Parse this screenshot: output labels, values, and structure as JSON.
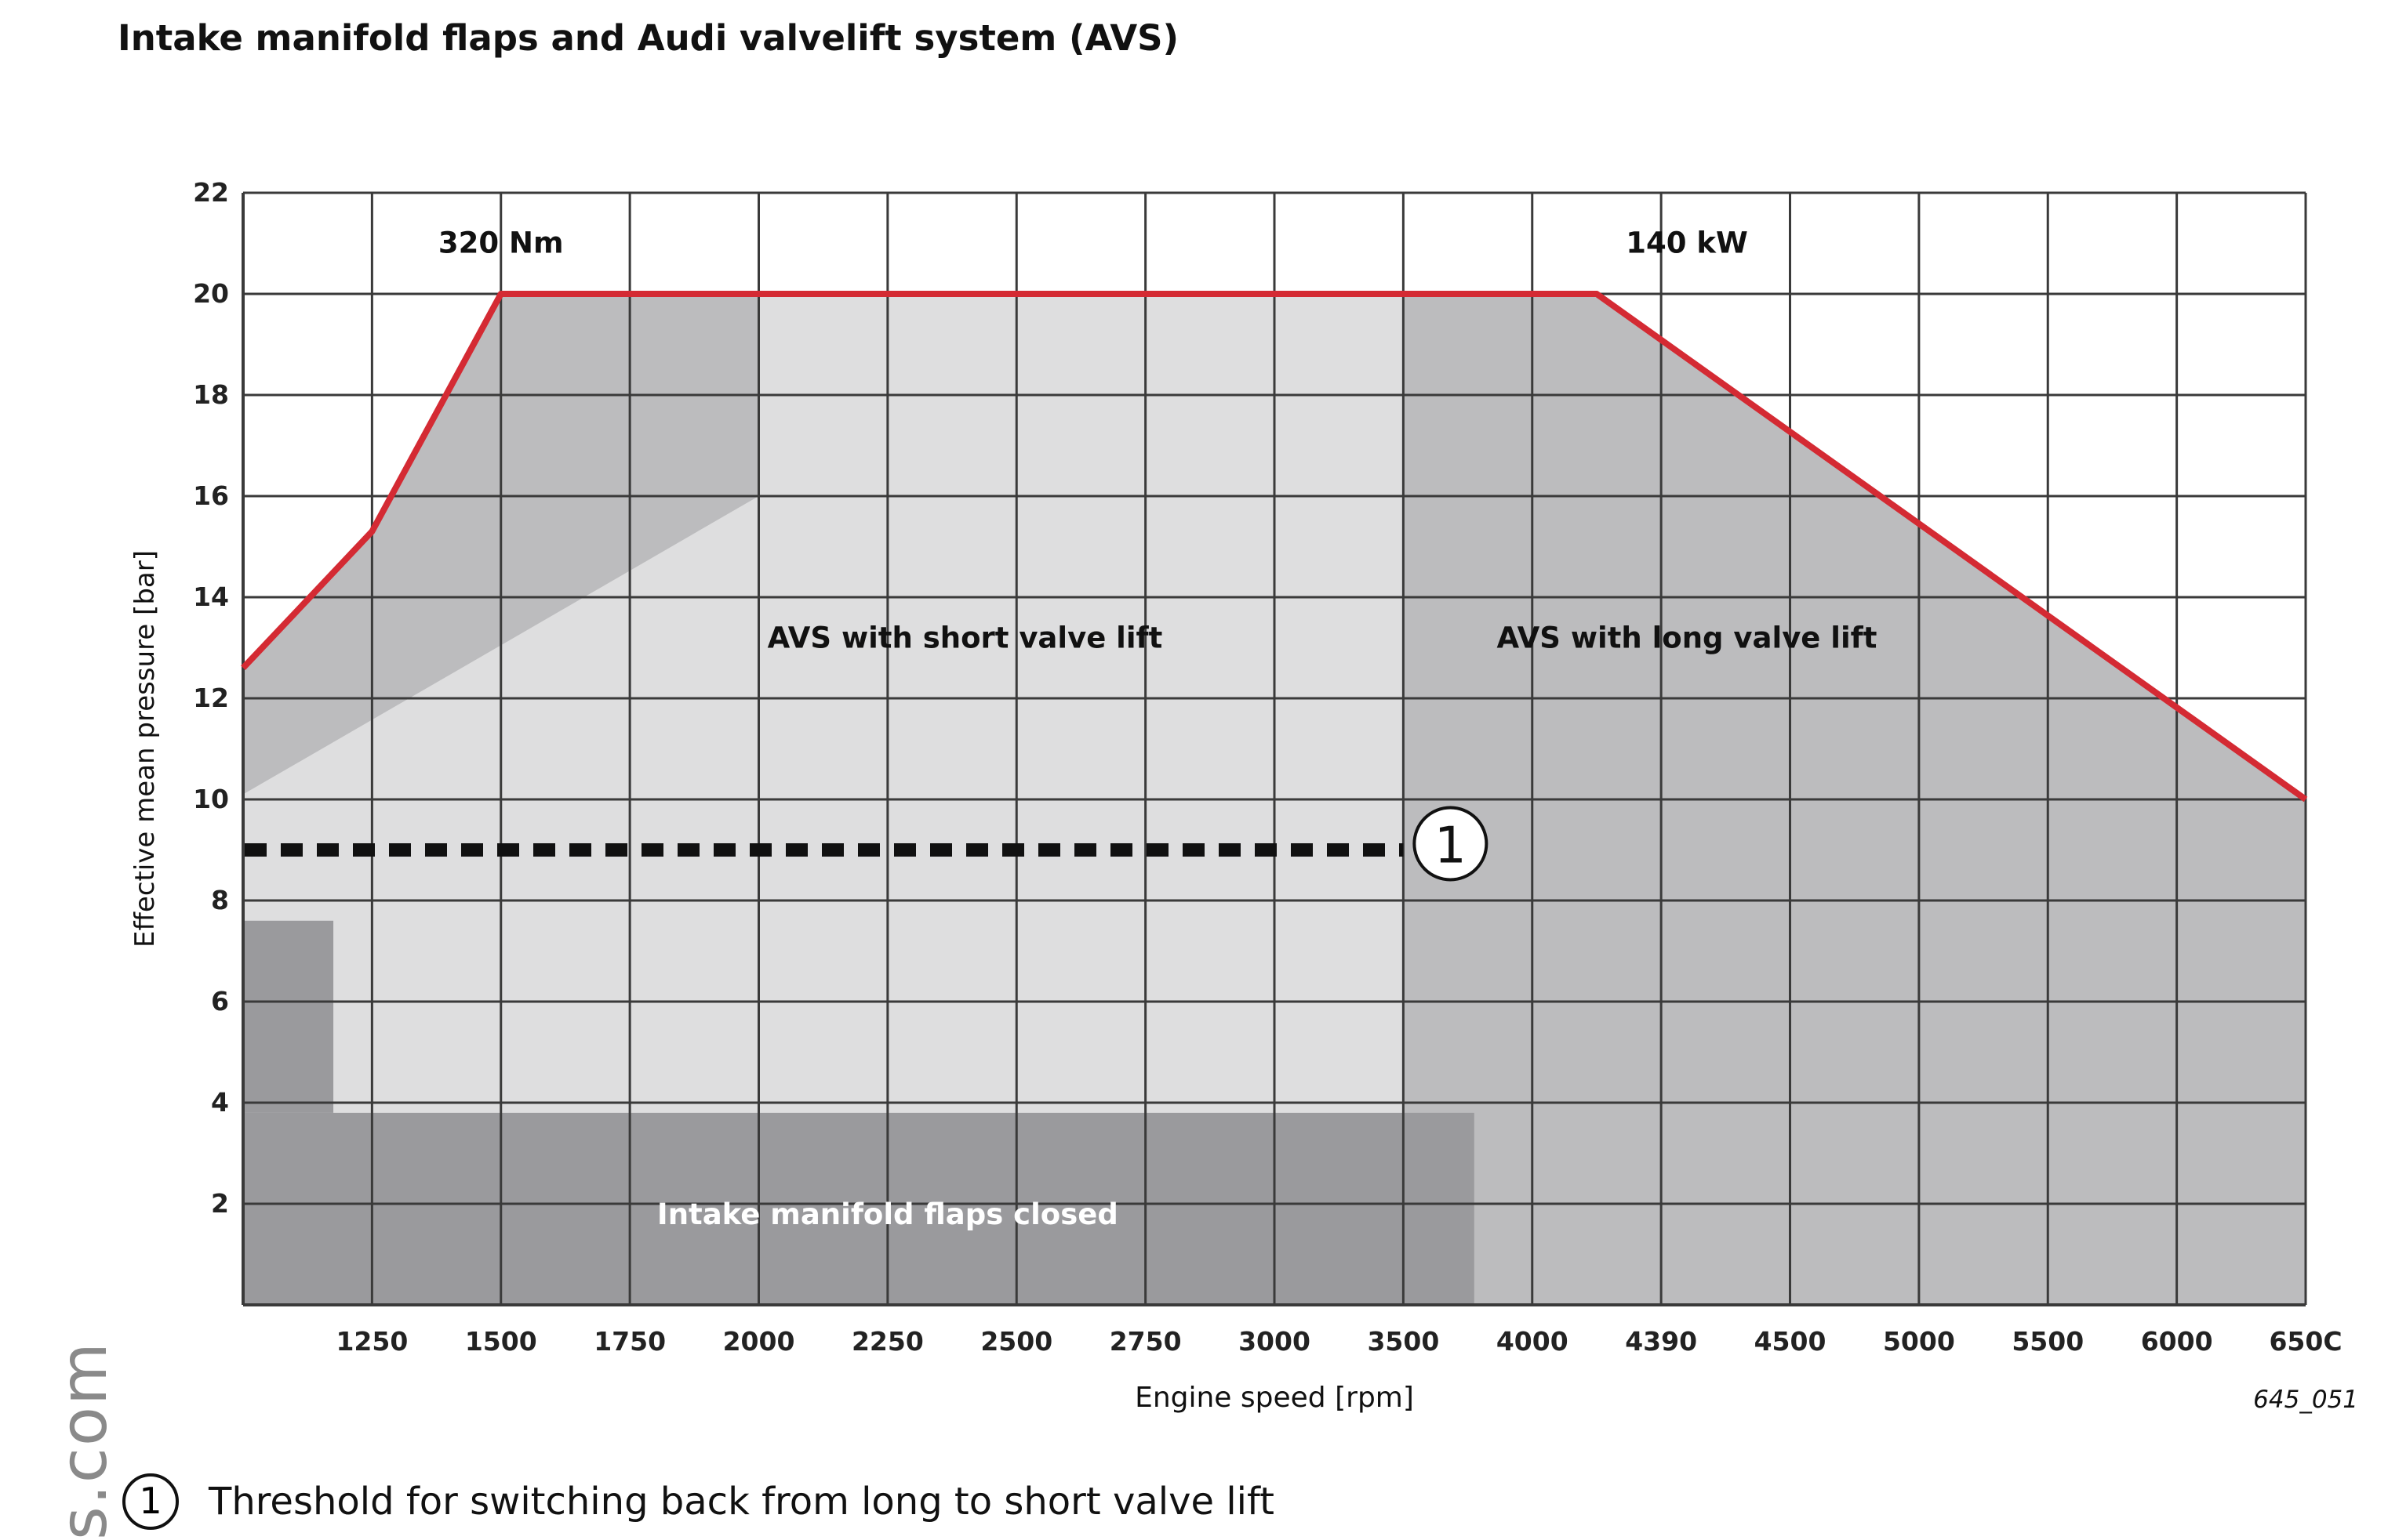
{
  "title": "Intake manifold flaps and Audi valvelift system (AVS)",
  "figure_code": "645_051",
  "footnote": {
    "marker": "1",
    "text": "Threshold for switching back from long to short valve lift"
  },
  "watermark": "s.com",
  "colors": {
    "background": "#ffffff",
    "region_light": "#dededf",
    "region_medium": "#bcbcbe",
    "region_dark": "#9a9a9d",
    "full_load_line": "#d42a33",
    "grid": "#3a3a3a",
    "threshold_line": "#111111"
  },
  "chart_data": {
    "type": "area",
    "xlabel": "Engine speed [rpm]",
    "ylabel": "Effective mean pressure [bar]",
    "x_ticks": [
      "",
      "1250",
      "1500",
      "1750",
      "2000",
      "2250",
      "2500",
      "2750",
      "3000",
      "3500",
      "4000",
      "4390",
      "4500",
      "5000",
      "5500",
      "6000",
      "650C"
    ],
    "y_ticks": [
      2,
      4,
      6,
      8,
      10,
      12,
      14,
      16,
      18,
      20,
      22
    ],
    "ylim": [
      0,
      22
    ],
    "x_axis_note": "tick columns equally spaced; first column unlabeled",
    "grid": true,
    "series": [
      {
        "name": "",
        "kind": "full-load-line",
        "x": [
          "",
          "1250",
          "1500",
          "4250",
          "650C"
        ],
        "x_index": [
          0,
          1,
          2,
          10.5,
          16
        ],
        "y": [
          12.6,
          15.3,
          20,
          20,
          10
        ]
      }
    ],
    "regions": [
      {
        "label": "AVS with short valve lift",
        "x_index": [
          0,
          9
        ],
        "y": [
          0,
          20
        ],
        "shade": "light"
      },
      {
        "label": "AVS with long valve lift",
        "x_index": [
          9,
          16
        ],
        "y": [
          0,
          20
        ],
        "shade": "medium"
      },
      {
        "label": "Intake manifold flaps closed",
        "x_index": [
          0,
          9.55
        ],
        "y": [
          0,
          3.8
        ],
        "shade": "dark",
        "extra_step": {
          "x_index": [
            0,
            0.7
          ],
          "y": [
            3.8,
            7.6
          ]
        }
      }
    ],
    "annotations": [
      {
        "text": "320 Nm",
        "x_index": 2,
        "y": 21
      },
      {
        "text": "140 kW",
        "x_index": 11.2,
        "y": 21
      }
    ],
    "threshold": {
      "marker": "1",
      "y": 9,
      "x_index": [
        0,
        9
      ]
    }
  }
}
